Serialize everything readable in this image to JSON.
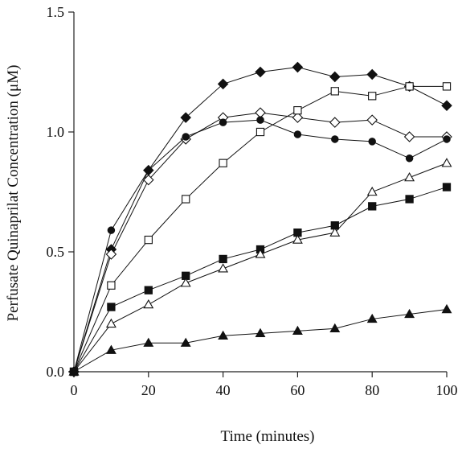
{
  "chart_data": {
    "type": "line",
    "xlabel": "Time (minutes)",
    "ylabel": "Perfusate Quinaprilat Concentration (μM)",
    "xlim": [
      0,
      100
    ],
    "ylim": [
      0,
      1.5
    ],
    "x_ticks": [
      "0",
      "20",
      "40",
      "60",
      "80",
      "100"
    ],
    "y_ticks": [
      "0.0",
      "0.5",
      "1.0",
      "1.5"
    ],
    "x": [
      0,
      10,
      20,
      30,
      40,
      50,
      60,
      70,
      80,
      90,
      100
    ],
    "grid": false,
    "legend": "none",
    "series": [
      {
        "marker": "filled-diamond",
        "values": [
          0.0,
          0.51,
          0.84,
          1.06,
          1.2,
          1.25,
          1.27,
          1.23,
          1.24,
          1.19,
          1.11
        ]
      },
      {
        "marker": "open-diamond",
        "values": [
          0.0,
          0.49,
          0.8,
          0.97,
          1.06,
          1.08,
          1.06,
          1.04,
          1.05,
          0.98,
          0.98
        ]
      },
      {
        "marker": "filled-circle",
        "values": [
          0.0,
          0.59,
          0.84,
          0.98,
          1.04,
          1.05,
          0.99,
          0.97,
          0.96,
          0.89,
          0.97
        ]
      },
      {
        "marker": "open-square",
        "values": [
          0.0,
          0.36,
          0.55,
          0.72,
          0.87,
          1.0,
          1.09,
          1.17,
          1.15,
          1.19,
          1.19
        ]
      },
      {
        "marker": "filled-square",
        "values": [
          0.0,
          0.27,
          0.34,
          0.4,
          0.47,
          0.51,
          0.58,
          0.61,
          0.69,
          0.72,
          0.77
        ]
      },
      {
        "marker": "open-triangle",
        "values": [
          0.0,
          0.2,
          0.28,
          0.37,
          0.43,
          0.49,
          0.55,
          0.58,
          0.75,
          0.81,
          0.87
        ]
      },
      {
        "marker": "filled-triangle",
        "values": [
          0.0,
          0.09,
          0.12,
          0.12,
          0.15,
          0.16,
          0.17,
          0.18,
          0.22,
          0.24,
          0.26
        ]
      }
    ]
  }
}
